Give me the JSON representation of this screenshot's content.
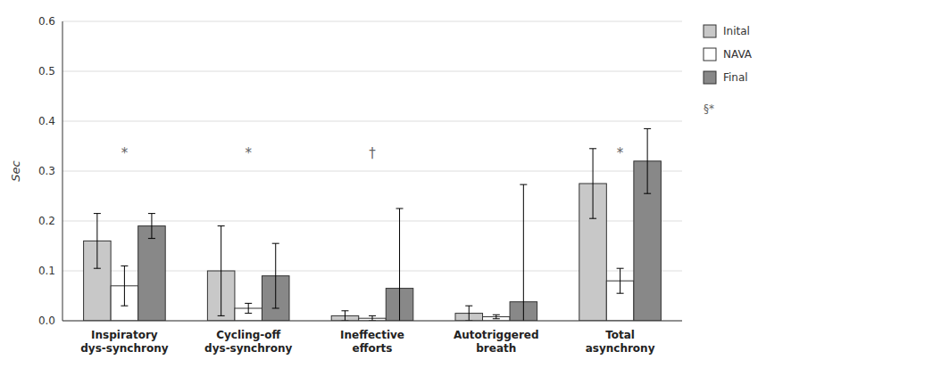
{
  "chart_data": {
    "type": "bar",
    "categories": [
      "Inspiratory\ndys-synchrony",
      "Cycling-off\ndys-synchrony",
      "Ineffective\nefforts",
      "Autotriggered\nbreath",
      "Total\nasynchrony"
    ],
    "series": [
      {
        "name": "Inital",
        "color": "#c8c8c8",
        "values": [
          0.16,
          0.1,
          0.01,
          0.015,
          0.275
        ],
        "errors": [
          0.055,
          0.09,
          0.01,
          0.015,
          0.07
        ]
      },
      {
        "name": "NAVA",
        "color": "#ffffff",
        "values": [
          0.07,
          0.025,
          0.005,
          0.008,
          0.08
        ],
        "errors": [
          0.04,
          0.01,
          0.005,
          0.004,
          0.025
        ]
      },
      {
        "name": "Final",
        "color": "#888888",
        "values": [
          0.19,
          0.09,
          0.065,
          0.038,
          0.32
        ],
        "errors": [
          0.025,
          0.065,
          0.16,
          0.235,
          0.065
        ]
      }
    ],
    "y_label": "Sec",
    "ylim": [
      0,
      0.6
    ],
    "yticks": [
      {
        "value": 0,
        "label": "0.0"
      },
      0.1,
      0.2,
      0.3,
      0.4,
      0.5,
      0.6
    ],
    "grid": true,
    "legend": "right",
    "annotations": [
      {
        "text": "*",
        "x": "Inspiratory\ndys-synchrony",
        "y": 0.335
      },
      {
        "text": "*",
        "x": "Cycling-off\ndys-synchrony",
        "y": 0.335
      },
      {
        "text": "†",
        "x": "Ineffective\nefforts",
        "y": 0.335
      },
      {
        "text": "*",
        "x": "Total\nasynchrony",
        "y": 0.335
      },
      {
        "text": "§*"
      }
    ]
  }
}
